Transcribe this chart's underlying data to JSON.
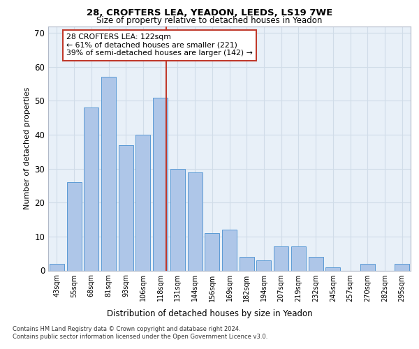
{
  "title_line1": "28, CROFTERS LEA, YEADON, LEEDS, LS19 7WE",
  "title_line2": "Size of property relative to detached houses in Yeadon",
  "xlabel": "Distribution of detached houses by size in Yeadon",
  "ylabel": "Number of detached properties",
  "categories": [
    "43sqm",
    "55sqm",
    "68sqm",
    "81sqm",
    "93sqm",
    "106sqm",
    "118sqm",
    "131sqm",
    "144sqm",
    "156sqm",
    "169sqm",
    "182sqm",
    "194sqm",
    "207sqm",
    "219sqm",
    "232sqm",
    "245sqm",
    "257sqm",
    "270sqm",
    "282sqm",
    "295sqm"
  ],
  "values": [
    2,
    26,
    48,
    57,
    37,
    40,
    51,
    30,
    29,
    11,
    12,
    4,
    3,
    7,
    7,
    4,
    1,
    0,
    2,
    0,
    2
  ],
  "bar_color": "#aec6e8",
  "bar_edge_color": "#5b9bd5",
  "vline_x": 6.33,
  "vline_color": "#c0392b",
  "annotation_text": "28 CROFTERS LEA: 122sqm\n← 61% of detached houses are smaller (221)\n39% of semi-detached houses are larger (142) →",
  "annotation_box_facecolor": "#ffffff",
  "annotation_box_edgecolor": "#c0392b",
  "ylim": [
    0,
    72
  ],
  "yticks": [
    0,
    10,
    20,
    30,
    40,
    50,
    60,
    70
  ],
  "grid_color": "#d0dce8",
  "bg_color": "#e8f0f8",
  "footnote": "Contains HM Land Registry data © Crown copyright and database right 2024.\nContains public sector information licensed under the Open Government Licence v3.0."
}
